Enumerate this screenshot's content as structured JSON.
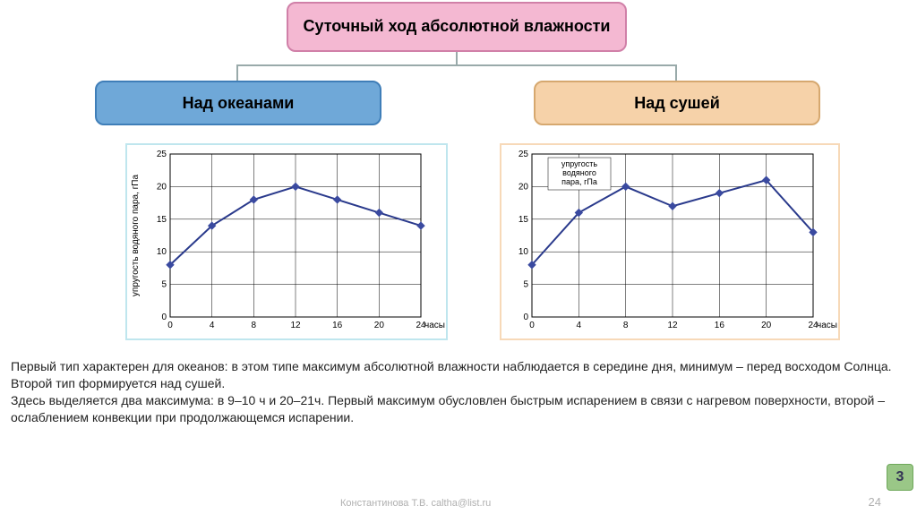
{
  "title": "Суточный ход абсолютной влажности",
  "branch_left_label": "Над океанами",
  "branch_right_label": "Над сушей",
  "colors": {
    "title_bg": "#f4b8d2",
    "title_border": "#d080a8",
    "left_bg": "#6fa8d8",
    "left_border": "#3f7eb8",
    "right_bg": "#f6d2a9",
    "right_border": "#d6a86f",
    "left_frame": "#bfe6ee",
    "right_frame": "#f7d9b8",
    "line": "#2a3a8c",
    "marker": "#3a4aa0",
    "grid": "#000000",
    "badge_bg": "#9ac787"
  },
  "chart_left": {
    "type": "line",
    "ylabel": "упругость водяного пара, гПа",
    "xlabel": "часы",
    "x_ticks": [
      0,
      4,
      8,
      12,
      16,
      20,
      24
    ],
    "y_ticks": [
      0,
      5,
      10,
      15,
      20,
      25
    ],
    "xlim": [
      0,
      24
    ],
    "ylim": [
      0,
      25
    ],
    "x": [
      0,
      4,
      8,
      12,
      16,
      20,
      24
    ],
    "y": [
      8,
      14,
      18,
      20,
      18,
      16,
      14
    ],
    "line_color": "#2a3a8c",
    "marker_color": "#3a4aa0",
    "line_width": 2,
    "marker_size": 4,
    "grid": true
  },
  "chart_right": {
    "type": "line",
    "legend": "упругость\nводяного\nпара, гПа",
    "xlabel": "часы",
    "x_ticks": [
      0,
      4,
      8,
      12,
      16,
      20,
      24
    ],
    "y_ticks": [
      0,
      5,
      10,
      15,
      20,
      25
    ],
    "xlim": [
      0,
      24
    ],
    "ylim": [
      0,
      25
    ],
    "x": [
      0,
      4,
      8,
      12,
      16,
      20,
      24
    ],
    "y": [
      8,
      16,
      20,
      17,
      19,
      21,
      13
    ],
    "line_color": "#2a3a8c",
    "marker_color": "#3a4aa0",
    "line_width": 2,
    "marker_size": 4,
    "grid": true
  },
  "description": "Первый тип характерен для океанов: в этом типе максимум абсолютной влажности наблюдается в середине дня, минимум – перед восходом Солнца.\nВторой тип формируется над сушей.\nЗдесь выделяется два максимума: в 9–10 ч и 20–21ч. Первый максимум обусловлен быстрым испарением в связи с нагревом поверхности, второй – ослаблением конвекции при продолжающемся испарении.",
  "footer_mail": "Константинова Т.В. caltha@list.ru",
  "page_number": "24",
  "badge": "3"
}
